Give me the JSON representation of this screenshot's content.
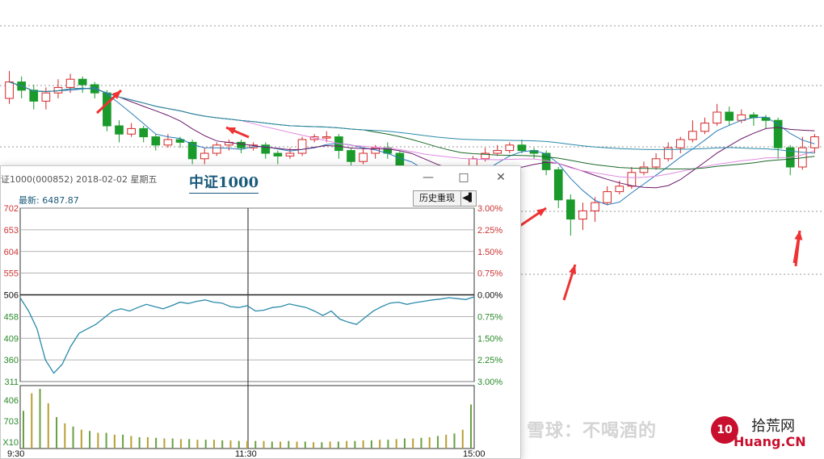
{
  "colors": {
    "up": "#d62728",
    "down": "#1a9a2a",
    "ma5": "#2b7bb9",
    "ma10": "#6a1a6a",
    "ma20": "#e08ae0",
    "ma30": "#1a6a2a",
    "ma60": "#2a8aaa",
    "arrow": "#ee3333"
  },
  "chart_data": [
    {
      "type": "candlestick",
      "title": "",
      "grid": true,
      "ylim": [
        0,
        100
      ],
      "candles": [
        {
          "o": 70,
          "c": 76,
          "h": 80,
          "l": 68
        },
        {
          "o": 76,
          "c": 73,
          "h": 78,
          "l": 70
        },
        {
          "o": 73,
          "c": 69,
          "h": 75,
          "l": 66
        },
        {
          "o": 69,
          "c": 72,
          "h": 74,
          "l": 66
        },
        {
          "o": 72,
          "c": 74,
          "h": 77,
          "l": 70
        },
        {
          "o": 74,
          "c": 77,
          "h": 79,
          "l": 72
        },
        {
          "o": 77,
          "c": 75,
          "h": 78,
          "l": 72
        },
        {
          "o": 75,
          "c": 72,
          "h": 76,
          "l": 70
        },
        {
          "o": 72,
          "c": 60,
          "h": 73,
          "l": 58
        },
        {
          "o": 60,
          "c": 57,
          "h": 62,
          "l": 54
        },
        {
          "o": 57,
          "c": 59,
          "h": 61,
          "l": 56
        },
        {
          "o": 59,
          "c": 56,
          "h": 60,
          "l": 54
        },
        {
          "o": 56,
          "c": 53,
          "h": 57,
          "l": 51
        },
        {
          "o": 53,
          "c": 55,
          "h": 57,
          "l": 52
        },
        {
          "o": 55,
          "c": 54,
          "h": 56,
          "l": 52
        },
        {
          "o": 54,
          "c": 48,
          "h": 55,
          "l": 46
        },
        {
          "o": 48,
          "c": 50,
          "h": 52,
          "l": 46
        },
        {
          "o": 50,
          "c": 53,
          "h": 54,
          "l": 49
        },
        {
          "o": 53,
          "c": 54,
          "h": 55,
          "l": 51
        },
        {
          "o": 54,
          "c": 52,
          "h": 55,
          "l": 50
        },
        {
          "o": 52,
          "c": 53,
          "h": 54,
          "l": 51
        },
        {
          "o": 53,
          "c": 50,
          "h": 54,
          "l": 48
        },
        {
          "o": 50,
          "c": 49,
          "h": 51,
          "l": 46
        },
        {
          "o": 49,
          "c": 50,
          "h": 52,
          "l": 48
        },
        {
          "o": 50,
          "c": 55,
          "h": 56,
          "l": 49
        },
        {
          "o": 55,
          "c": 56,
          "h": 57,
          "l": 54
        },
        {
          "o": 56,
          "c": 56,
          "h": 58,
          "l": 54
        },
        {
          "o": 56,
          "c": 51,
          "h": 57,
          "l": 48
        },
        {
          "o": 51,
          "c": 47,
          "h": 52,
          "l": 45
        },
        {
          "o": 47,
          "c": 50,
          "h": 52,
          "l": 46
        },
        {
          "o": 50,
          "c": 52,
          "h": 53,
          "l": 48
        },
        {
          "o": 52,
          "c": 50,
          "h": 54,
          "l": 48
        },
        {
          "o": 50,
          "c": 42,
          "h": 51,
          "l": 40
        },
        {
          "o": 42,
          "c": 40,
          "h": 44,
          "l": 38
        },
        {
          "o": 40,
          "c": 36,
          "h": 42,
          "l": 34
        },
        {
          "o": 36,
          "c": 37,
          "h": 40,
          "l": 34
        },
        {
          "o": 37,
          "c": 40,
          "h": 42,
          "l": 36
        },
        {
          "o": 40,
          "c": 43,
          "h": 44,
          "l": 39
        },
        {
          "o": 43,
          "c": 48,
          "h": 49,
          "l": 42
        },
        {
          "o": 48,
          "c": 50,
          "h": 52,
          "l": 47
        },
        {
          "o": 50,
          "c": 51,
          "h": 53,
          "l": 49
        },
        {
          "o": 51,
          "c": 53,
          "h": 54,
          "l": 50
        },
        {
          "o": 53,
          "c": 51,
          "h": 55,
          "l": 50
        },
        {
          "o": 51,
          "c": 50,
          "h": 52,
          "l": 48
        },
        {
          "o": 50,
          "c": 44,
          "h": 51,
          "l": 42
        },
        {
          "o": 44,
          "c": 33,
          "h": 45,
          "l": 30
        },
        {
          "o": 33,
          "c": 26,
          "h": 35,
          "l": 20
        },
        {
          "o": 26,
          "c": 29,
          "h": 32,
          "l": 22
        },
        {
          "o": 29,
          "c": 32,
          "h": 34,
          "l": 25
        },
        {
          "o": 32,
          "c": 36,
          "h": 38,
          "l": 31
        },
        {
          "o": 36,
          "c": 38,
          "h": 40,
          "l": 35
        },
        {
          "o": 38,
          "c": 43,
          "h": 45,
          "l": 37
        },
        {
          "o": 43,
          "c": 45,
          "h": 47,
          "l": 42
        },
        {
          "o": 45,
          "c": 48,
          "h": 50,
          "l": 44
        },
        {
          "o": 48,
          "c": 52,
          "h": 54,
          "l": 47
        },
        {
          "o": 52,
          "c": 55,
          "h": 56,
          "l": 50
        },
        {
          "o": 55,
          "c": 58,
          "h": 62,
          "l": 54
        },
        {
          "o": 58,
          "c": 61,
          "h": 63,
          "l": 57
        },
        {
          "o": 61,
          "c": 65,
          "h": 68,
          "l": 60
        },
        {
          "o": 65,
          "c": 62,
          "h": 67,
          "l": 60
        },
        {
          "o": 62,
          "c": 64,
          "h": 66,
          "l": 61
        },
        {
          "o": 64,
          "c": 63,
          "h": 65,
          "l": 60
        },
        {
          "o": 63,
          "c": 62,
          "h": 64,
          "l": 59
        },
        {
          "o": 62,
          "c": 52,
          "h": 63,
          "l": 48
        },
        {
          "o": 52,
          "c": 45,
          "h": 53,
          "l": 42
        },
        {
          "o": 45,
          "c": 52,
          "h": 56,
          "l": 44
        },
        {
          "o": 52,
          "c": 56,
          "h": 57,
          "l": 50
        }
      ],
      "annotations": [
        "arrow",
        "arrow",
        "arrow",
        "arrow",
        "arrow",
        "arrow"
      ]
    },
    {
      "type": "line",
      "title": "中证1000",
      "header": "证1000(000852)  2018-02-02  星期五",
      "latest_label": "最新: 6487.87",
      "y_ticks_left": [
        "702",
        "653",
        "604",
        "555",
        "506",
        "458",
        "409",
        "360",
        "311"
      ],
      "y_ticks_right": [
        "3.00%",
        "2.25%",
        "1.50%",
        "0.75%",
        "0.00%",
        "0.75%",
        "1.50%",
        "2.25%",
        "3.00%"
      ],
      "volume_ticks_left": [
        "406",
        "703",
        "X10"
      ],
      "x_ticks": [
        "9:30",
        "11:30",
        "15:00"
      ],
      "baseline": 506,
      "ylim": [
        311,
        702
      ],
      "series": [
        {
          "values": [
            500,
            470,
            430,
            360,
            330,
            350,
            390,
            420,
            430,
            440,
            455,
            470,
            475,
            470,
            478,
            485,
            480,
            475,
            482,
            490,
            487,
            492,
            495,
            490,
            488,
            480,
            478,
            482,
            470,
            472,
            478,
            480,
            486,
            482,
            478,
            470,
            460,
            470,
            452,
            445,
            440,
            455,
            470,
            480,
            488,
            490,
            485,
            489,
            492,
            495,
            497,
            500,
            498,
            496,
            502
          ]
        }
      ],
      "volume": [
        60,
        88,
        95,
        72,
        50,
        40,
        35,
        30,
        28,
        25,
        25,
        22,
        22,
        20,
        18,
        18,
        17,
        16,
        16,
        15,
        15,
        14,
        14,
        14,
        13,
        13,
        12,
        12,
        12,
        12,
        11,
        11,
        12,
        11,
        11,
        10,
        10,
        11,
        11,
        12,
        12,
        13,
        13,
        14,
        14,
        15,
        16,
        16,
        17,
        18,
        20,
        22,
        24,
        30,
        70
      ]
    }
  ],
  "popup": {
    "window_title": "证1000(000852)  2018-02-02  星期五",
    "heading": "中证1000",
    "latest": "最新: 6487.87",
    "history_button": "历史重现",
    "back_icon": "◀▌",
    "minimize_glyph": "—",
    "maximize_glyph": "□",
    "close_glyph": "✕"
  },
  "watermark": "雪球：不喝酒的",
  "logo": {
    "badge": "10",
    "cn": "拾荒网",
    "en": "Huang.CN"
  }
}
